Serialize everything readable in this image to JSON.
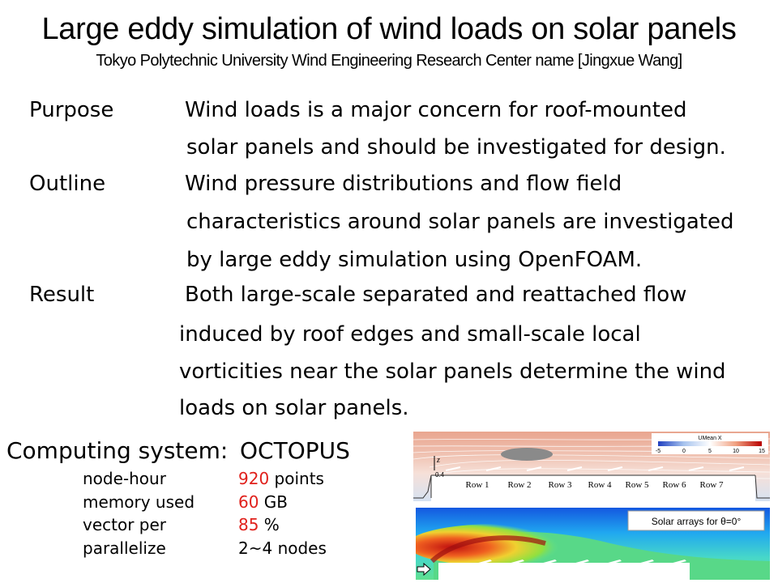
{
  "title": "Large eddy simulation of wind loads on solar panels",
  "subtitle": "Tokyo Polytechnic University Wind Engineering Research Center  name [Jingxue Wang]",
  "sections": [
    {
      "label": "Purpose",
      "lines": [
        "Wind loads is a major concern for roof-mounted",
        "solar panels and should be investigated for design."
      ]
    },
    {
      "label": "Outline",
      "lines": [
        "Wind pressure distributions and flow field",
        "characteristics around solar panels are investigated",
        "by large eddy simulation using OpenFOAM."
      ]
    },
    {
      "label": "Result",
      "lines": [
        "Both large-scale separated and reattached flow",
        "induced by roof edges and small-scale local",
        "vorticities near the solar panels determine the wind",
        "loads on solar panels."
      ]
    }
  ],
  "computing": {
    "heading": "Computing system:",
    "system": "OCTOPUS",
    "specs": [
      {
        "label": "node-hour",
        "value": "920",
        "unit": " points"
      },
      {
        "label": "memory used",
        "value": "60",
        "unit": " GB"
      },
      {
        "label": "vector per",
        "value": "85",
        "unit": " %"
      },
      {
        "label": "parallelize",
        "value": "",
        "unit": "2~4 nodes"
      }
    ]
  },
  "figure_top": {
    "colorbar_title": "UMean X",
    "colorbar_ticks": [
      "-5",
      "0",
      "5",
      "10",
      "15"
    ],
    "axis_label": "z",
    "axis_tick": "0.4",
    "rows": [
      "Row 1",
      "Row 2",
      "Row 3",
      "Row 4",
      "Row 5",
      "Row 6",
      "Row 7"
    ]
  },
  "figure_bottom": {
    "legend": "Solar arrays for θ=0°"
  }
}
